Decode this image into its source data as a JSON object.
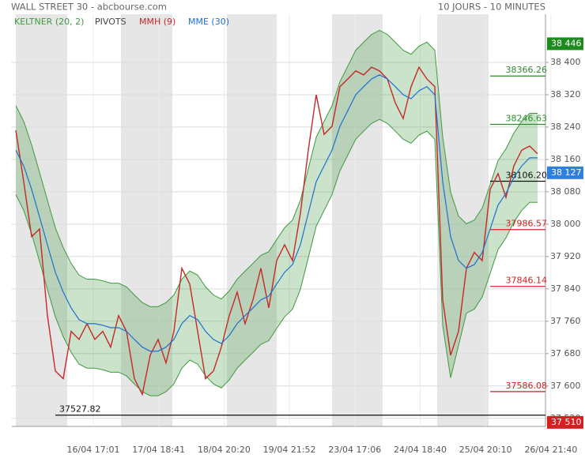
{
  "header": {
    "title": "WALL STREET 30 - abcbourse.com",
    "period": "10 JOURS - 10 MINUTES"
  },
  "chart_data": {
    "type": "line",
    "x_labels": [
      "16/04 17:01",
      "17/04 18:41",
      "18/04 20:20",
      "19/04 21:52",
      "23/04 17:06",
      "24/04 18:40",
      "25/04 20:10",
      "26/04 21:40"
    ],
    "ylim": [
      37500,
      38519
    ],
    "yticks": [
      {
        "value": 38400,
        "label": "38 400"
      },
      {
        "value": 38320,
        "label": "38 320"
      },
      {
        "value": 38240,
        "label": "38 240"
      },
      {
        "value": 38160,
        "label": "38 160"
      },
      {
        "value": 38080,
        "label": "38 080"
      },
      {
        "value": 38000,
        "label": "38 000"
      },
      {
        "value": 37920,
        "label": "37 920"
      },
      {
        "value": 37840,
        "label": "37 840"
      },
      {
        "value": 37760,
        "label": "37 760"
      },
      {
        "value": 37680,
        "label": "37 680"
      },
      {
        "value": 37600,
        "label": "37 600"
      },
      {
        "value": 37520,
        "label": "37 520"
      }
    ],
    "grid": true,
    "keltner": {
      "name": "KELTNER (20, 2)",
      "color": "#3f9a3f",
      "upper": [
        38293,
        38254,
        38196,
        38128,
        38059,
        37991,
        37942,
        37903,
        37874,
        37864,
        37864,
        37860,
        37854,
        37854,
        37845,
        37825,
        37806,
        37796,
        37796,
        37806,
        37825,
        37864,
        37884,
        37874,
        37845,
        37825,
        37815,
        37835,
        37864,
        37884,
        37903,
        37923,
        37932,
        37962,
        37991,
        38010,
        38059,
        38137,
        38215,
        38254,
        38293,
        38352,
        38391,
        38430,
        38450,
        38469,
        38479,
        38469,
        38450,
        38430,
        38420,
        38440,
        38450,
        38430,
        38215,
        38079,
        38020,
        38001,
        38010,
        38040,
        38098,
        38157,
        38186,
        38225,
        38254,
        38274,
        38274
      ],
      "lower": [
        38073,
        38034,
        37976,
        37908,
        37839,
        37771,
        37722,
        37683,
        37654,
        37644,
        37644,
        37640,
        37634,
        37634,
        37625,
        37605,
        37586,
        37576,
        37576,
        37586,
        37605,
        37644,
        37664,
        37654,
        37625,
        37605,
        37595,
        37615,
        37644,
        37664,
        37683,
        37703,
        37712,
        37742,
        37771,
        37790,
        37839,
        37917,
        37995,
        38034,
        38073,
        38132,
        38171,
        38210,
        38230,
        38249,
        38259,
        38249,
        38230,
        38210,
        38200,
        38220,
        38230,
        38210,
        37750,
        37620,
        37700,
        37780,
        37790,
        37820,
        37878,
        37937,
        37966,
        38005,
        38034,
        38054,
        38054
      ]
    },
    "pivots": {
      "name": "PIVOTS",
      "levels": [
        38366.26,
        38246.63,
        38106.2,
        37986.57,
        37846.14,
        37586.08,
        37527.82
      ],
      "labels": [
        "38366.26",
        "38246.63",
        "38106.20",
        "37986.57",
        "37846.14",
        "37586.08",
        "37527.82"
      ],
      "colors": [
        "#2e8b2e",
        "#2e8b2e",
        "#111111",
        "#d22020",
        "#d22020",
        "#d22020",
        "#111111"
      ]
    },
    "series": [
      {
        "name": "MMH (9)",
        "color": "#c62828",
        "values": [
          38232,
          38105,
          37969,
          37988,
          37774,
          37637,
          37618,
          37735,
          37715,
          37754,
          37715,
          37735,
          37696,
          37774,
          37735,
          37618,
          37579,
          37676,
          37715,
          37657,
          37735,
          37891,
          37852,
          37735,
          37618,
          37637,
          37696,
          37774,
          37832,
          37754,
          37813,
          37891,
          37793,
          37910,
          37949,
          37910,
          38027,
          38183,
          38320,
          38222,
          38242,
          38340,
          38359,
          38379,
          38369,
          38388,
          38379,
          38359,
          38300,
          38261,
          38340,
          38388,
          38359,
          38340,
          37813,
          37676,
          37735,
          37891,
          37930,
          37910,
          38086,
          38125,
          38066,
          38144,
          38183,
          38193,
          38174
        ]
      },
      {
        "name": "MME (30)",
        "color": "#1f6fd1",
        "values": [
          38183,
          38144,
          38086,
          38018,
          37949,
          37881,
          37832,
          37793,
          37764,
          37754,
          37754,
          37750,
          37744,
          37744,
          37735,
          37715,
          37696,
          37686,
          37686,
          37696,
          37715,
          37754,
          37774,
          37764,
          37735,
          37715,
          37705,
          37725,
          37754,
          37774,
          37793,
          37813,
          37822,
          37852,
          37881,
          37900,
          37949,
          38027,
          38105,
          38144,
          38183,
          38242,
          38281,
          38320,
          38340,
          38359,
          38369,
          38359,
          38340,
          38320,
          38310,
          38330,
          38340,
          38320,
          38105,
          37969,
          37910,
          37891,
          37900,
          37930,
          37988,
          38047,
          38076,
          38115,
          38144,
          38164,
          38164
        ]
      }
    ],
    "price_tags": [
      {
        "value": 38446,
        "label": "38 446",
        "color": "#1e8a1e"
      },
      {
        "value": 38127,
        "label": "38 127",
        "color": "#2f7fe0"
      },
      {
        "value": 37510,
        "label": "37 510",
        "color": "#d42020"
      }
    ]
  }
}
